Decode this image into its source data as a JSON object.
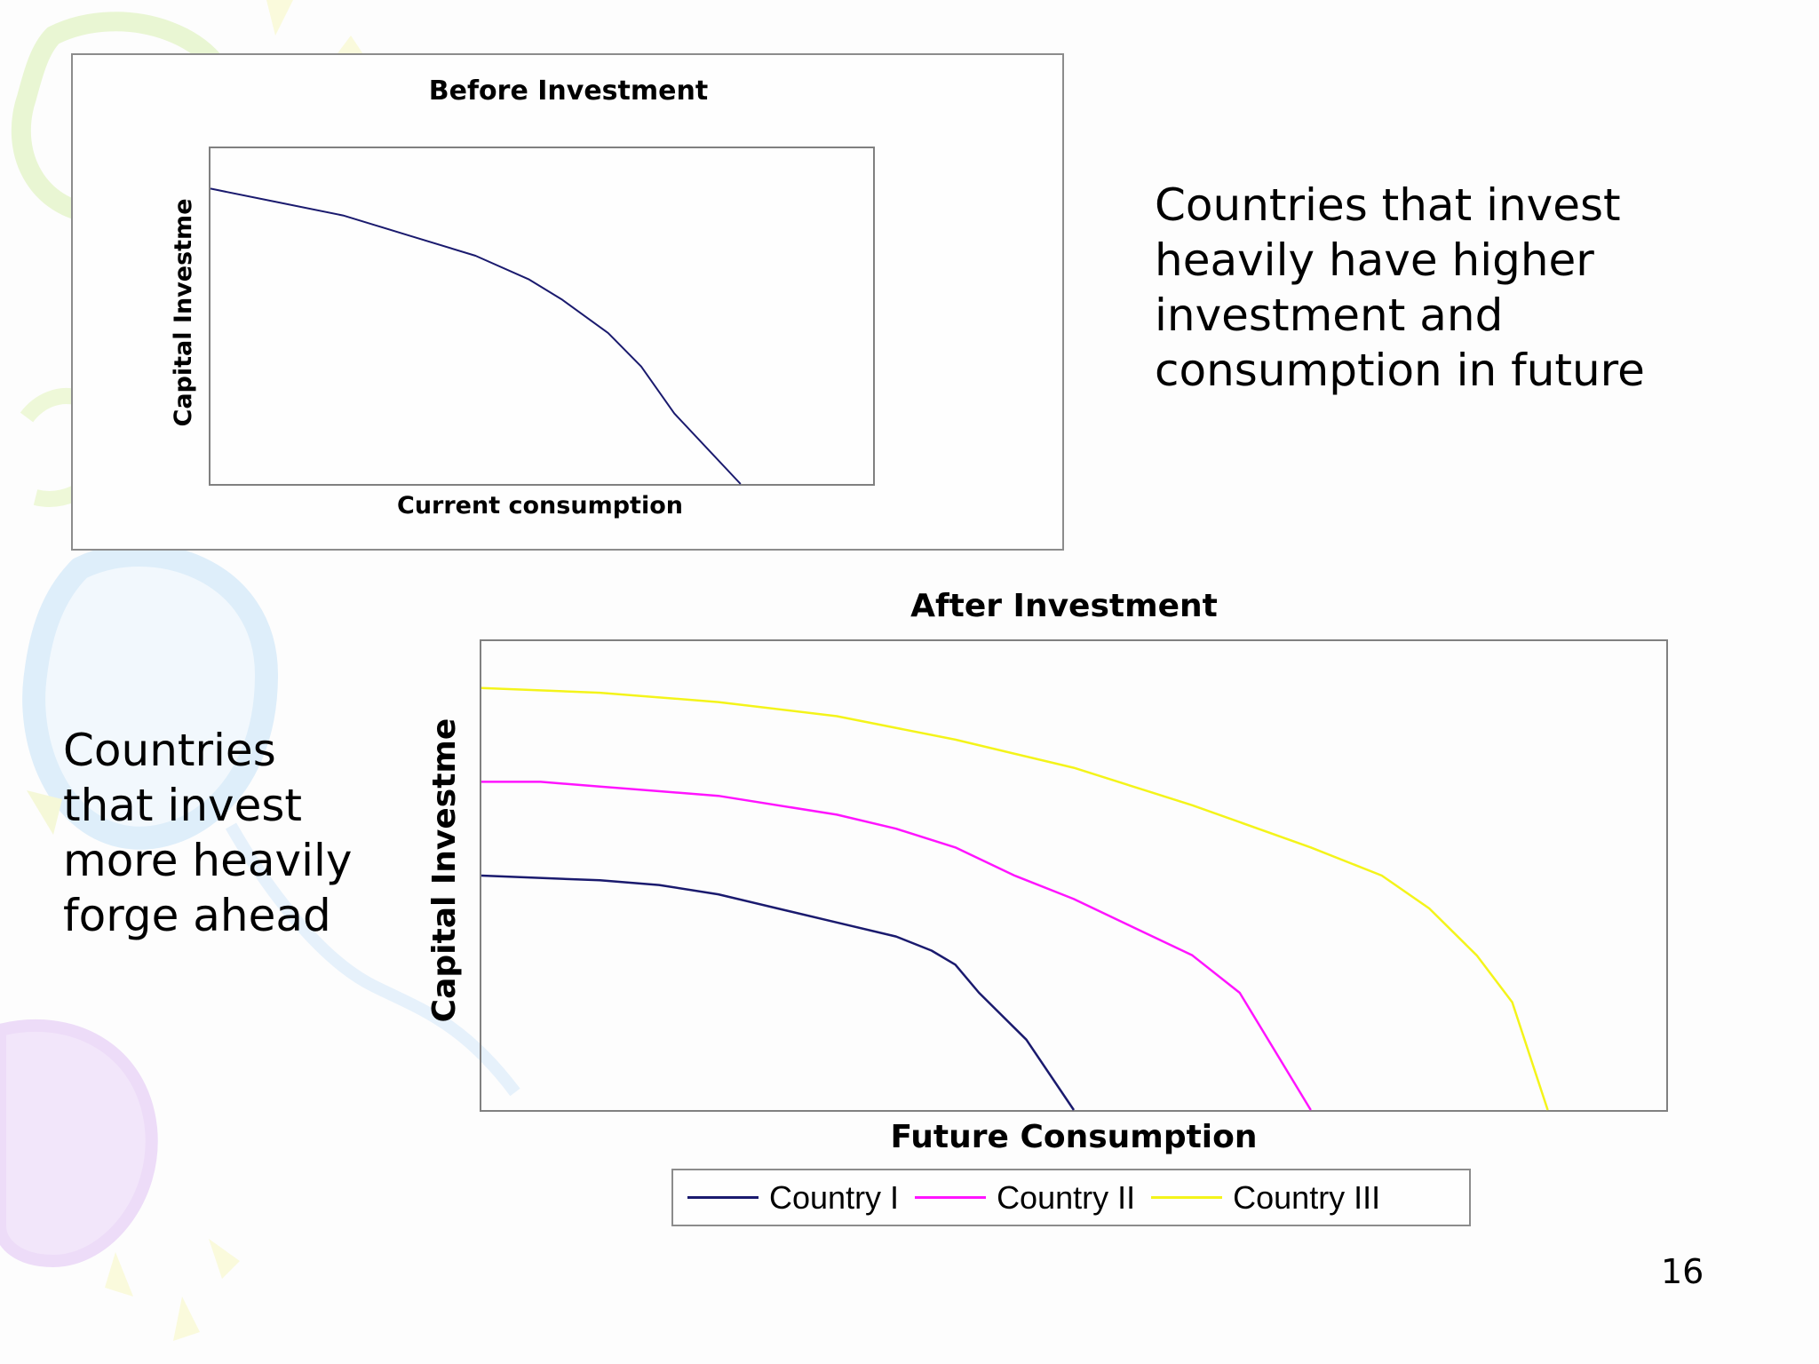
{
  "slide": {
    "text_top_right": [
      "Countries that invest",
      "heavily have higher",
      "investment and",
      "consumption in future"
    ],
    "text_left": [
      "Countries",
      "that invest",
      "more heavily",
      "forge ahead"
    ],
    "page_number": "16"
  },
  "chart_data": [
    {
      "type": "line",
      "title": "Before Investment",
      "xlabel": "Current consumption",
      "ylabel": "Capital Investme",
      "xlim": [
        0,
        100
      ],
      "ylim": [
        0,
        100
      ],
      "grid": false,
      "legend": "none",
      "series": [
        {
          "color": "#1a1a6e",
          "points": [
            [
              0,
              88
            ],
            [
              10,
              84
            ],
            [
              20,
              80
            ],
            [
              25,
              77
            ],
            [
              30,
              74
            ],
            [
              40,
              68
            ],
            [
              48,
              61
            ],
            [
              53,
              55
            ],
            [
              60,
              45
            ],
            [
              65,
              35
            ],
            [
              70,
              21
            ],
            [
              80,
              0
            ]
          ]
        }
      ]
    },
    {
      "type": "line",
      "title": "After Investment",
      "xlabel": "Future Consumption",
      "ylabel": "Capital Investme",
      "xlim": [
        0,
        100
      ],
      "ylim": [
        0,
        100
      ],
      "grid": false,
      "legend": "bottom",
      "series": [
        {
          "name": "Country I",
          "color": "#1a1a6e",
          "points": [
            [
              0,
              50
            ],
            [
              10,
              49
            ],
            [
              15,
              48
            ],
            [
              20,
              46
            ],
            [
              25,
              43
            ],
            [
              30,
              40
            ],
            [
              35,
              37
            ],
            [
              38,
              34
            ],
            [
              40,
              31
            ],
            [
              42,
              25
            ],
            [
              46,
              15
            ],
            [
              50,
              0
            ]
          ]
        },
        {
          "name": "Country II",
          "color": "#ff14ff",
          "points": [
            [
              0,
              70
            ],
            [
              5,
              70
            ],
            [
              10,
              69
            ],
            [
              20,
              67
            ],
            [
              30,
              63
            ],
            [
              35,
              60
            ],
            [
              40,
              56
            ],
            [
              45,
              50
            ],
            [
              50,
              45
            ],
            [
              55,
              39
            ],
            [
              60,
              33
            ],
            [
              64,
              25
            ],
            [
              70,
              0
            ]
          ]
        },
        {
          "name": "Country III",
          "color": "#f4f41a",
          "points": [
            [
              0,
              90
            ],
            [
              10,
              89
            ],
            [
              20,
              87
            ],
            [
              30,
              84
            ],
            [
              40,
              79
            ],
            [
              50,
              73
            ],
            [
              60,
              65
            ],
            [
              70,
              56
            ],
            [
              76,
              50
            ],
            [
              80,
              43
            ],
            [
              84,
              33
            ],
            [
              87,
              23
            ],
            [
              90,
              0
            ]
          ]
        }
      ]
    }
  ]
}
